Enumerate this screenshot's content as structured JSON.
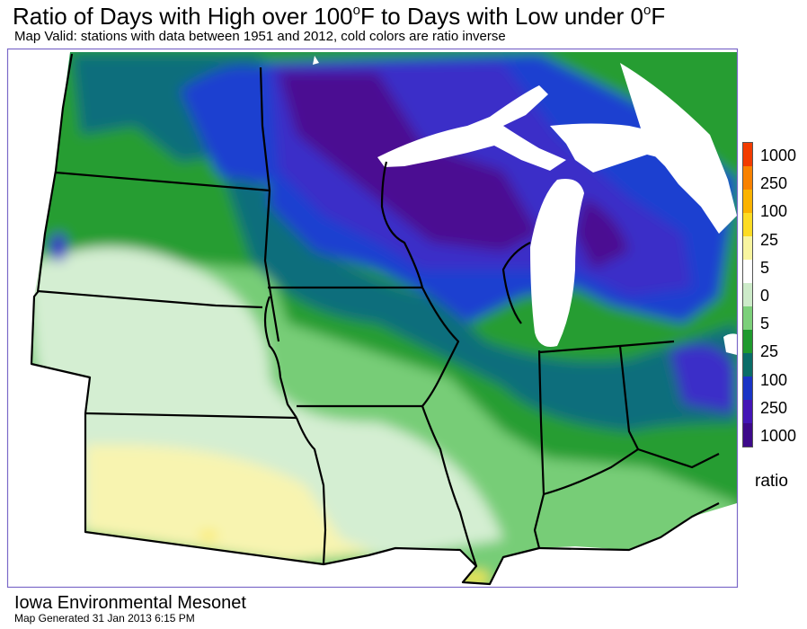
{
  "title": {
    "text": "Ratio of Days with High over 100",
    "sup1": "o",
    "mid": "F to Days with Low under 0",
    "sup2": "o",
    "end": "F"
  },
  "subtitle": "Map Valid: stations with data between 1951 and 2012, cold colors are ratio inverse",
  "legend": {
    "labels": [
      "1000",
      "250",
      "100",
      "25",
      "5",
      "0",
      "5",
      "25",
      "100",
      "250",
      "1000"
    ],
    "colors": [
      "#f23c00",
      "#f98200",
      "#fbb300",
      "#fddc24",
      "#f8f5a0",
      "#ffffff",
      "#cdebc9",
      "#7cd07a",
      "#1f9a2e",
      "#0a6d68",
      "#1a34c5",
      "#4416b6",
      "#3d0a8a"
    ],
    "unit": "ratio"
  },
  "footer": {
    "org": "Iowa Environmental Mesonet",
    "generated": "Map Generated 31 Jan 2013 6:15 PM"
  },
  "map_palette": {
    "water": "#ffffff",
    "deep_purple": "#4b0e92",
    "blue_purple": "#3a2ec8",
    "blue": "#1e3fd0",
    "teal": "#0f6e7c",
    "green": "#279d33",
    "light_green": "#77cd77",
    "pale_green": "#d4eed2",
    "pale_yellow": "#f8f4b0",
    "yellow": "#fbe94a",
    "outline": "#000000",
    "frame": "#7b68c8"
  }
}
